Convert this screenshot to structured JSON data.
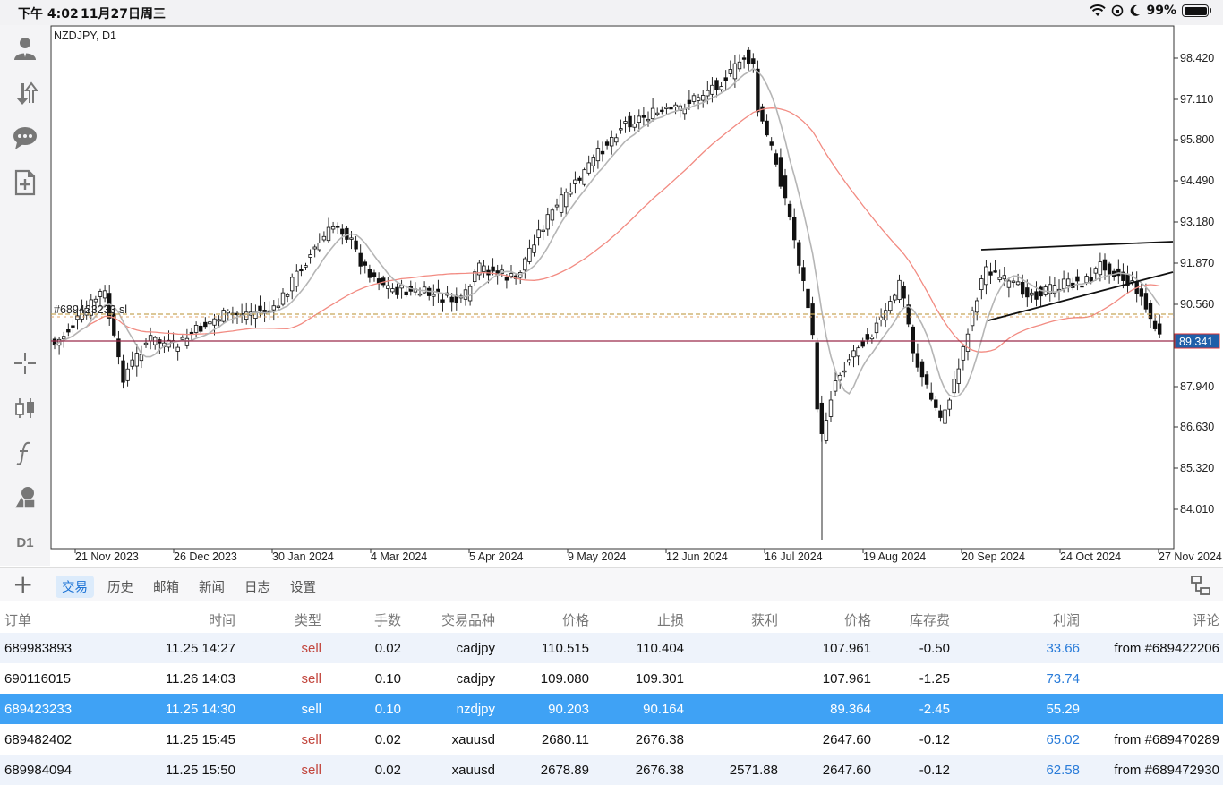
{
  "status_bar": {
    "time": "下午 4:02",
    "date": "11月27日周三",
    "battery": "99%"
  },
  "chart": {
    "title": "NZDJPY, D1",
    "timeframe": "D1",
    "order_line_label": "#689423233 sl",
    "current_price": "89.341",
    "price_labels": [
      "98.420",
      "97.110",
      "95.800",
      "94.490",
      "93.180",
      "91.870",
      "90.560",
      "87.940",
      "86.630",
      "85.320",
      "84.010"
    ],
    "date_labels": [
      "21 Nov 2023",
      "26 Dec 2023",
      "30 Jan 2024",
      "4 Mar 2024",
      "5 Apr 2024",
      "9 May 2024",
      "12 Jun 2024",
      "16 Jul 2024",
      "19 Aug 2024",
      "20 Sep 2024",
      "24 Oct 2024",
      "27 Nov 2024"
    ],
    "colors": {
      "bid_line": "#9b2a4a",
      "ma_slow": "#f28b82",
      "ma_fast": "#b5b5b5",
      "sl_line": "#c8a85a",
      "price_tag": "#1f5fa8"
    }
  },
  "bottom_panel": {
    "add_label": "+",
    "tabs": [
      "交易",
      "历史",
      "邮箱",
      "新闻",
      "日志",
      "设置"
    ],
    "active_tab": 0
  },
  "table": {
    "headers": [
      "订单",
      "时间",
      "类型",
      "手数",
      "交易品种",
      "价格",
      "止损",
      "获利",
      "价格",
      "库存费",
      "利润",
      "评论"
    ],
    "rows": [
      [
        "689983893",
        "11.25 14:27",
        "sell",
        "0.02",
        "cadjpy",
        "110.515",
        "110.404",
        "",
        "107.961",
        "-0.50",
        "33.66",
        "from #689422206"
      ],
      [
        "690116015",
        "11.26 14:03",
        "sell",
        "0.10",
        "cadjpy",
        "109.080",
        "109.301",
        "",
        "107.961",
        "-1.25",
        "73.74",
        ""
      ],
      [
        "689423233",
        "11.25 14:30",
        "sell",
        "0.10",
        "nzdjpy",
        "90.203",
        "90.164",
        "",
        "89.364",
        "-2.45",
        "55.29",
        ""
      ],
      [
        "689482402",
        "11.25 15:45",
        "sell",
        "0.02",
        "xauusd",
        "2680.11",
        "2676.38",
        "",
        "2647.60",
        "-0.12",
        "65.02",
        "from #689470289"
      ],
      [
        "689984094",
        "11.25 15:50",
        "sell",
        "0.02",
        "xauusd",
        "2678.89",
        "2676.38",
        "2571.88",
        "2647.60",
        "-0.12",
        "62.58",
        "from #689472930"
      ]
    ],
    "selected_row": 2
  }
}
